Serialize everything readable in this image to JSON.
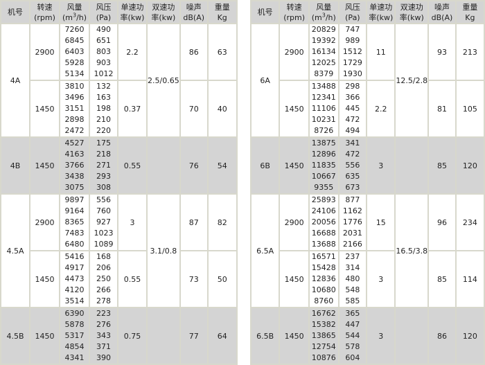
{
  "headers": [
    {
      "line1": "机号",
      "line2": ""
    },
    {
      "line1": "转速",
      "line2": "(rpm)"
    },
    {
      "line1": "风量",
      "line2": "(m3/h)"
    },
    {
      "line1": "风压",
      "line2": "(Pa)"
    },
    {
      "line1": "单速功",
      "line2": "率(kw)"
    },
    {
      "line1": "双速功",
      "line2": "率(kw)"
    },
    {
      "line1": "噪声",
      "line2": "dB(A)"
    },
    {
      "line1": "重量",
      "line2": "Kg"
    }
  ],
  "colors": {
    "shaded_row": "#d4d4d4",
    "header_bg": "#d4d4d4",
    "border": "#d8d8cc"
  },
  "tables": [
    {
      "models": [
        {
          "model": "4A",
          "shaded": false,
          "dual_power": "2.5/0.65",
          "speeds": [
            {
              "rpm": "2900",
              "airflow": [
                "7260",
                "6845",
                "6403",
                "5928",
                "5134"
              ],
              "pressure": [
                "490",
                "651",
                "803",
                "903",
                "1012"
              ],
              "single_power": "2.2",
              "noise": "86",
              "weight": "63"
            },
            {
              "rpm": "1450",
              "airflow": [
                "3810",
                "3496",
                "3151",
                "2898",
                "2472"
              ],
              "pressure": [
                "132",
                "163",
                "198",
                "210",
                "220"
              ],
              "single_power": "0.37",
              "noise": "70",
              "weight": "40"
            }
          ]
        },
        {
          "model": "4B",
          "shaded": true,
          "dual_power": "",
          "speeds": [
            {
              "rpm": "1450",
              "airflow": [
                "4527",
                "4163",
                "3766",
                "3438",
                "3075"
              ],
              "pressure": [
                "175",
                "218",
                "271",
                "293",
                "308"
              ],
              "single_power": "0.55",
              "noise": "76",
              "weight": "54"
            }
          ]
        },
        {
          "model": "4.5A",
          "shaded": false,
          "dual_power": "3.1/0.8",
          "speeds": [
            {
              "rpm": "2900",
              "airflow": [
                "9897",
                "9164",
                "8365",
                "7483",
                "6480"
              ],
              "pressure": [
                "556",
                "760",
                "927",
                "1023",
                "1089"
              ],
              "single_power": "3",
              "noise": "87",
              "weight": "82"
            },
            {
              "rpm": "1450",
              "airflow": [
                "5416",
                "4917",
                "4473",
                "4120",
                "3514"
              ],
              "pressure": [
                "168",
                "206",
                "250",
                "266",
                "278"
              ],
              "single_power": "0.55",
              "noise": "73",
              "weight": "50"
            }
          ]
        },
        {
          "model": "4.5B",
          "shaded": true,
          "dual_power": "",
          "speeds": [
            {
              "rpm": "1450",
              "airflow": [
                "6390",
                "5878",
                "5317",
                "4854",
                "4341"
              ],
              "pressure": [
                "223",
                "276",
                "343",
                "371",
                "390"
              ],
              "single_power": "0.75",
              "noise": "77",
              "weight": "64"
            }
          ]
        }
      ]
    },
    {
      "models": [
        {
          "model": "6A",
          "shaded": false,
          "dual_power": "12.5/2.8",
          "speeds": [
            {
              "rpm": "2900",
              "airflow": [
                "20829",
                "19392",
                "16134",
                "12025",
                "8379"
              ],
              "pressure": [
                "747",
                "989",
                "1512",
                "1729",
                "1930"
              ],
              "single_power": "11",
              "noise": "93",
              "weight": "213"
            },
            {
              "rpm": "1450",
              "airflow": [
                "13488",
                "12341",
                "11106",
                "10231",
                "8726"
              ],
              "pressure": [
                "298",
                "366",
                "445",
                "472",
                "494"
              ],
              "single_power": "2.2",
              "noise": "81",
              "weight": "105"
            }
          ]
        },
        {
          "model": "6B",
          "shaded": true,
          "dual_power": "",
          "speeds": [
            {
              "rpm": "1450",
              "airflow": [
                "13875",
                "12896",
                "11835",
                "10667",
                "9355"
              ],
              "pressure": [
                "341",
                "472",
                "556",
                "635",
                "673"
              ],
              "single_power": "3",
              "noise": "85",
              "weight": "120"
            }
          ]
        },
        {
          "model": "6.5A",
          "shaded": false,
          "dual_power": "16.5/3.8",
          "speeds": [
            {
              "rpm": "2900",
              "airflow": [
                "25893",
                "24106",
                "20056",
                "16688",
                "13688"
              ],
              "pressure": [
                "877",
                "1162",
                "1776",
                "2031",
                "2166"
              ],
              "single_power": "15",
              "noise": "96",
              "weight": "234"
            },
            {
              "rpm": "1450",
              "airflow": [
                "16571",
                "15428",
                "12836",
                "10680",
                "8760"
              ],
              "pressure": [
                "237",
                "314",
                "480",
                "548",
                "585"
              ],
              "single_power": "3",
              "noise": "85",
              "weight": "114"
            }
          ]
        },
        {
          "model": "6.5B",
          "shaded": true,
          "dual_power": "",
          "speeds": [
            {
              "rpm": "1450",
              "airflow": [
                "16762",
                "15382",
                "13865",
                "12754",
                "10876"
              ],
              "pressure": [
                "365",
                "447",
                "544",
                "578",
                "604"
              ],
              "single_power": "3",
              "noise": "86",
              "weight": "120"
            }
          ]
        }
      ]
    }
  ]
}
